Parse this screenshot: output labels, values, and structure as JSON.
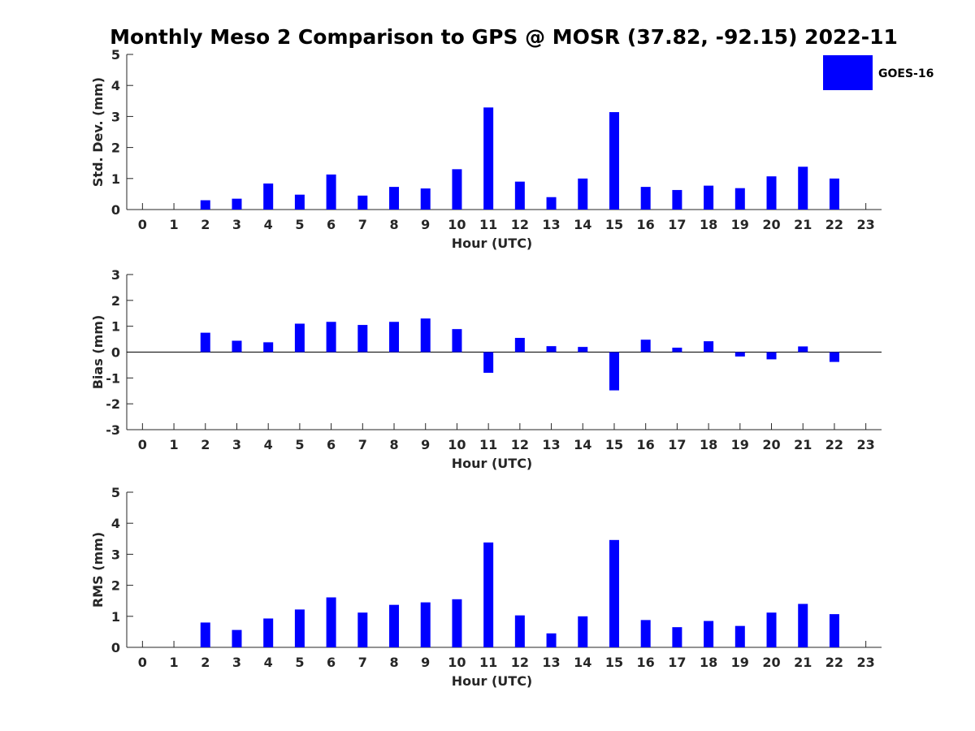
{
  "title": "Monthly Meso 2 Comparison to GPS @ MOSR (37.82, -92.15) 2022-11",
  "legend": {
    "label": "GOES-16",
    "color": "#0000ff",
    "placement": "top-right"
  },
  "bar_color": "#0000ff",
  "chart_data": [
    {
      "type": "bar",
      "name": "std-dev",
      "categories": [
        "0",
        "1",
        "2",
        "3",
        "4",
        "5",
        "6",
        "7",
        "8",
        "9",
        "10",
        "11",
        "12",
        "13",
        "14",
        "15",
        "16",
        "17",
        "18",
        "19",
        "20",
        "21",
        "22",
        "23"
      ],
      "series": [
        {
          "name": "GOES-16",
          "values": [
            null,
            null,
            0.3,
            0.35,
            0.84,
            0.48,
            1.13,
            0.45,
            0.73,
            0.68,
            1.3,
            3.29,
            0.9,
            0.4,
            1.0,
            3.14,
            0.73,
            0.63,
            0.77,
            0.69,
            1.07,
            1.38,
            1.0,
            null
          ]
        }
      ],
      "xlabel": "Hour (UTC)",
      "ylabel": "Std. Dev. (mm)",
      "ylim": [
        0,
        5
      ],
      "yticks": [
        "0",
        "1",
        "2",
        "3",
        "4",
        "5"
      ]
    },
    {
      "type": "bar",
      "name": "bias",
      "categories": [
        "0",
        "1",
        "2",
        "3",
        "4",
        "5",
        "6",
        "7",
        "8",
        "9",
        "10",
        "11",
        "12",
        "13",
        "14",
        "15",
        "16",
        "17",
        "18",
        "19",
        "20",
        "21",
        "22",
        "23"
      ],
      "series": [
        {
          "name": "GOES-16",
          "values": [
            null,
            null,
            0.75,
            0.44,
            0.38,
            1.1,
            1.17,
            1.05,
            1.17,
            1.3,
            0.89,
            -0.8,
            0.55,
            0.23,
            0.2,
            -1.48,
            0.48,
            0.17,
            0.42,
            -0.17,
            -0.28,
            0.22,
            -0.38,
            null
          ]
        }
      ],
      "xlabel": "Hour (UTC)",
      "ylabel": "Bias (mm)",
      "ylim": [
        -3,
        3
      ],
      "yticks": [
        "-3",
        "-2",
        "-1",
        "0",
        "1",
        "2",
        "3"
      ],
      "zero_line": true
    },
    {
      "type": "bar",
      "name": "rms",
      "categories": [
        "0",
        "1",
        "2",
        "3",
        "4",
        "5",
        "6",
        "7",
        "8",
        "9",
        "10",
        "11",
        "12",
        "13",
        "14",
        "15",
        "16",
        "17",
        "18",
        "19",
        "20",
        "21",
        "22",
        "23"
      ],
      "series": [
        {
          "name": "GOES-16",
          "values": [
            null,
            null,
            0.8,
            0.56,
            0.93,
            1.22,
            1.61,
            1.12,
            1.37,
            1.45,
            1.55,
            3.38,
            1.03,
            0.45,
            1.0,
            3.46,
            0.88,
            0.65,
            0.85,
            0.69,
            1.12,
            1.4,
            1.07,
            null
          ]
        }
      ],
      "xlabel": "Hour (UTC)",
      "ylabel": "RMS (mm)",
      "ylim": [
        0,
        5
      ],
      "yticks": [
        "0",
        "1",
        "2",
        "3",
        "4",
        "5"
      ]
    }
  ]
}
